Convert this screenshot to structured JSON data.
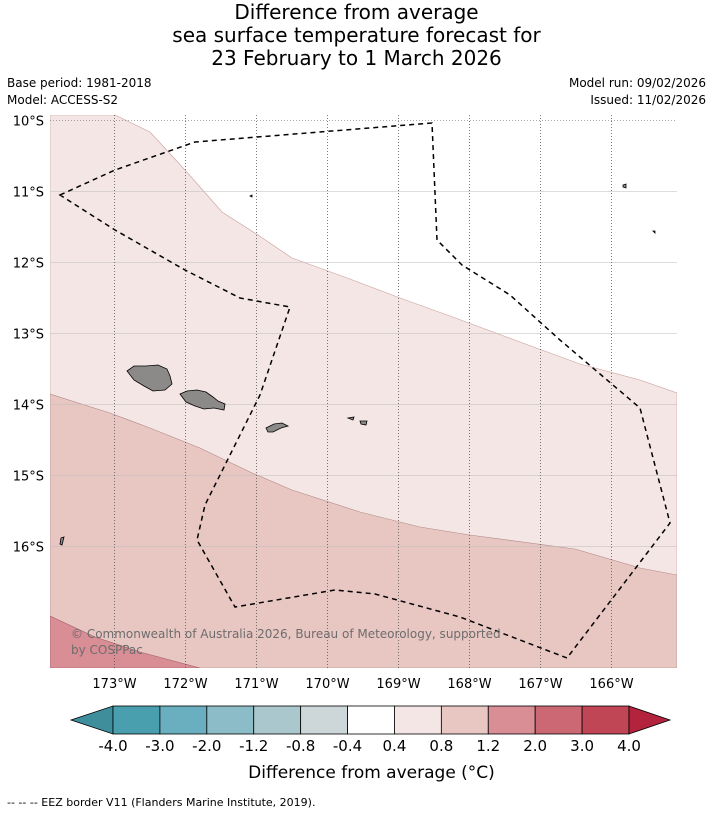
{
  "title": {
    "line1": "Difference from average",
    "line2": "sea surface temperature forecast for",
    "line3": "23 February to 1 March 2026"
  },
  "meta": {
    "base_period": "Base period: 1981-2018",
    "model": "Model: ACCESS-S2",
    "model_run": "Model run: 09/02/2026",
    "issued": "Issued: 11/02/2026"
  },
  "map": {
    "lat_labels": [
      "10°S",
      "11°S",
      "12°S",
      "13°S",
      "14°S",
      "15°S",
      "16°S"
    ],
    "lon_labels": [
      "173°W",
      "172°W",
      "171°W",
      "170°W",
      "169°W",
      "168°W",
      "167°W",
      "166°W"
    ],
    "land_name": "land",
    "copyright": "© Commonwealth of Australia 2026, Bureau of Meteorology, supported by COSPPac"
  },
  "colorbar": {
    "tick_labels": [
      "-4.0",
      "-3.0",
      "-2.0",
      "-1.2",
      "-0.8",
      "-0.4",
      "0.4",
      "0.8",
      "1.2",
      "2.0",
      "3.0",
      "4.0"
    ],
    "colors": [
      "#4a9fae",
      "#6aafc0",
      "#8cbcc7",
      "#a9c7cc",
      "#cdd6d8",
      "#ffffff",
      "#f4e6e5",
      "#e8c6c2",
      "#d98d95",
      "#cc6874",
      "#c04555"
    ],
    "under_color": "#3f8e9c",
    "over_color": "#b3233e",
    "title": "Difference from average (°C)"
  },
  "footer": "--  --  -- EEZ border V11 (Flanders Marine Institute, 2019)."
}
